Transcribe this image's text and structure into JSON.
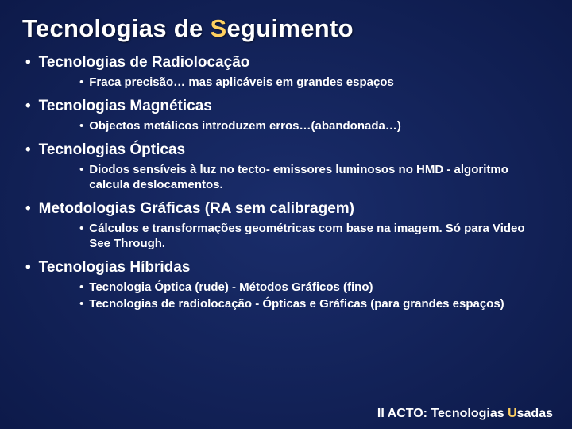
{
  "colors": {
    "background_center": "#1a2d6b",
    "background_edge": "#030618",
    "text": "#ffffff",
    "accent": "#ffd060"
  },
  "typography": {
    "family": "Verdana",
    "title_size_pt": 24,
    "main_bullet_size_pt": 14,
    "sub_bullet_size_pt": 11,
    "footer_size_pt": 12
  },
  "title_prefix": "Tecnologias de ",
  "title_accent": "S",
  "title_rest": "eguimento",
  "sections": [
    {
      "heading": "Tecnologias de Radiolocação",
      "subs": [
        "Fraca precisão… mas aplicáveis em grandes espaços"
      ]
    },
    {
      "heading": "Tecnologias Magnéticas",
      "subs": [
        "Objectos metálicos introduzem erros…(abandonada…)"
      ]
    },
    {
      "heading": "Tecnologias Ópticas",
      "subs": [
        "Diodos sensíveis à luz no tecto- emissores luminosos no HMD - algoritmo calcula deslocamentos."
      ]
    },
    {
      "heading": "Metodologias Gráficas (RA sem calibragem)",
      "subs": [
        "Cálculos e transformações geométricas com base na imagem. Só para Video See Through."
      ]
    },
    {
      "heading": "Tecnologias Híbridas",
      "subs": [
        "Tecnologia Óptica (rude) - Métodos Gráficos (fino)",
        "Tecnologias de radiolocação - Ópticas e Gráficas (para grandes espaços)"
      ]
    }
  ],
  "footer_prefix": "II ACTO: Tecnologias ",
  "footer_accent": "U",
  "footer_rest": "sadas"
}
